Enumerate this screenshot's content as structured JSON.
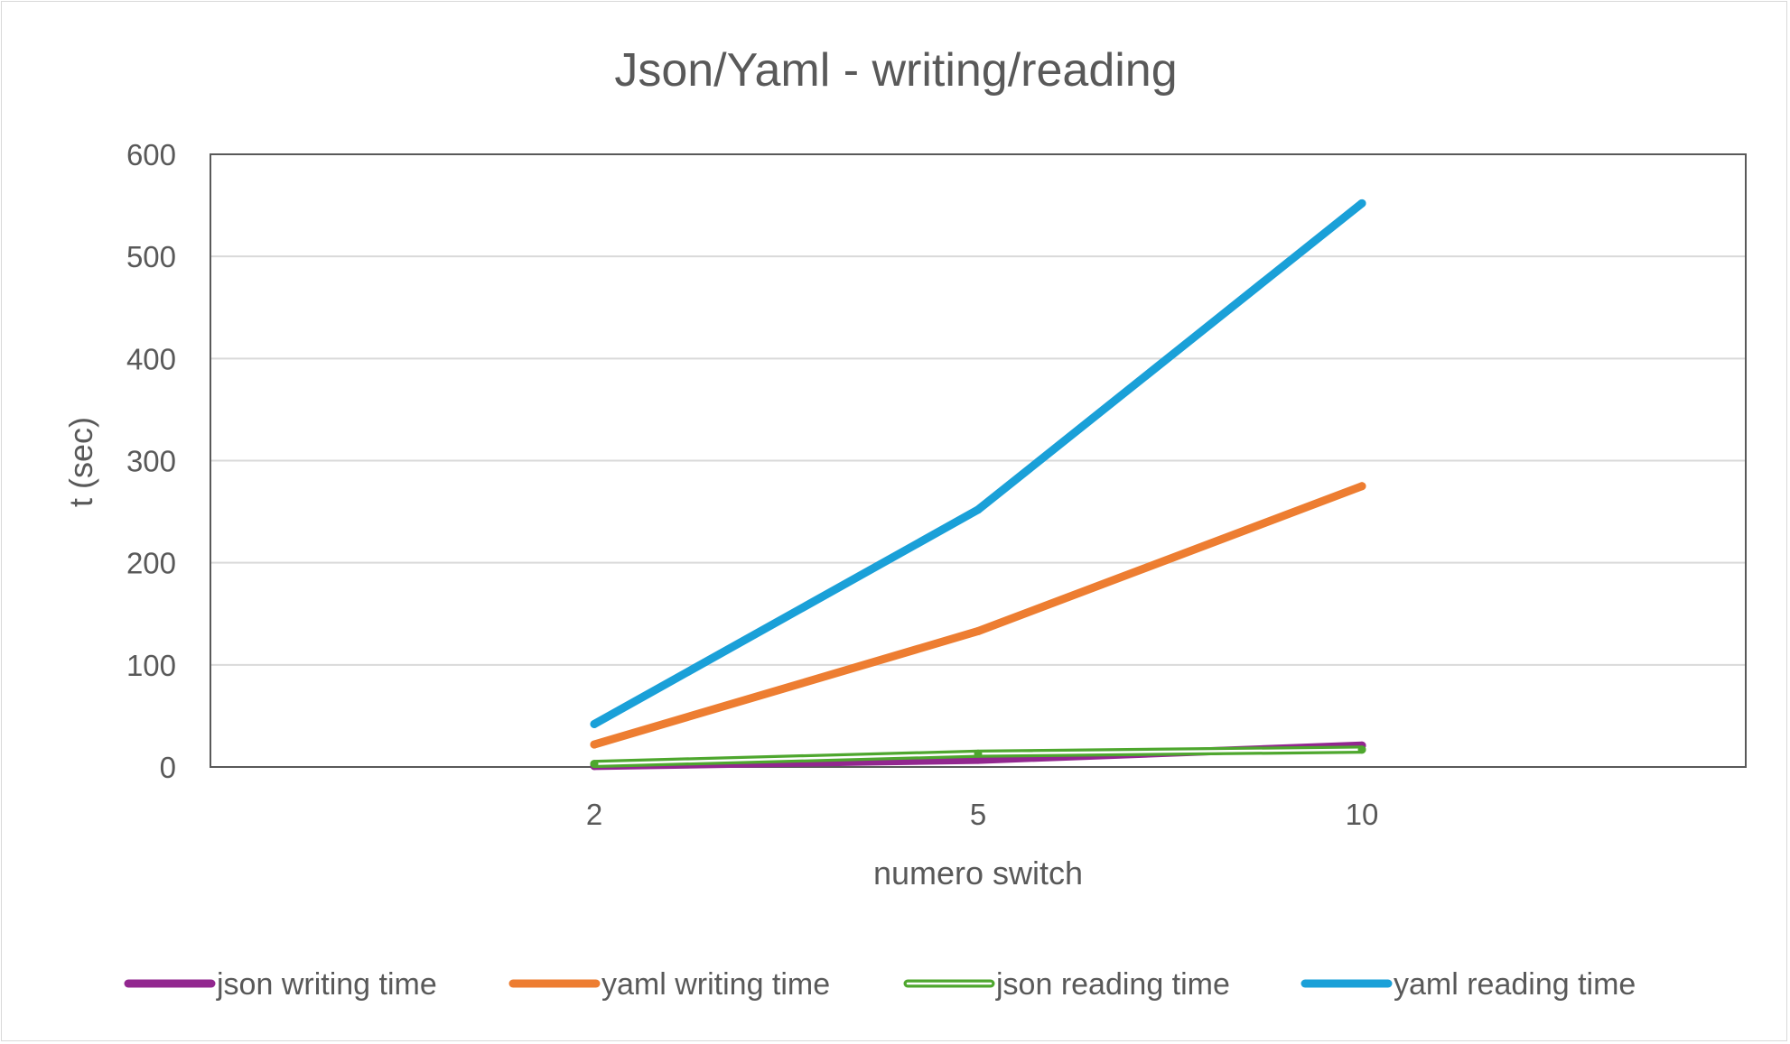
{
  "chart_data": {
    "type": "line",
    "title": "Json/Yaml - writing/reading",
    "xlabel": "numero switch",
    "ylabel": "t (sec)",
    "categories": [
      "2",
      "5",
      "10"
    ],
    "ylim": [
      0,
      600
    ],
    "yticks": [
      "0",
      "100",
      "200",
      "300",
      "400",
      "500",
      "600"
    ],
    "grid": true,
    "legend_position": "bottom",
    "series": [
      {
        "name": "json writing time",
        "values": [
          1,
          7,
          21
        ],
        "color": "#92278f",
        "style": "solid"
      },
      {
        "name": "yaml writing time",
        "values": [
          22,
          133,
          275
        ],
        "color": "#ed7d31",
        "style": "solid"
      },
      {
        "name": "json reading time",
        "values": [
          3,
          13,
          17
        ],
        "color": "#4ea72e",
        "style": "double"
      },
      {
        "name": "yaml reading time",
        "values": [
          42,
          252,
          552
        ],
        "color": "#1aa0d8",
        "style": "solid"
      }
    ]
  }
}
